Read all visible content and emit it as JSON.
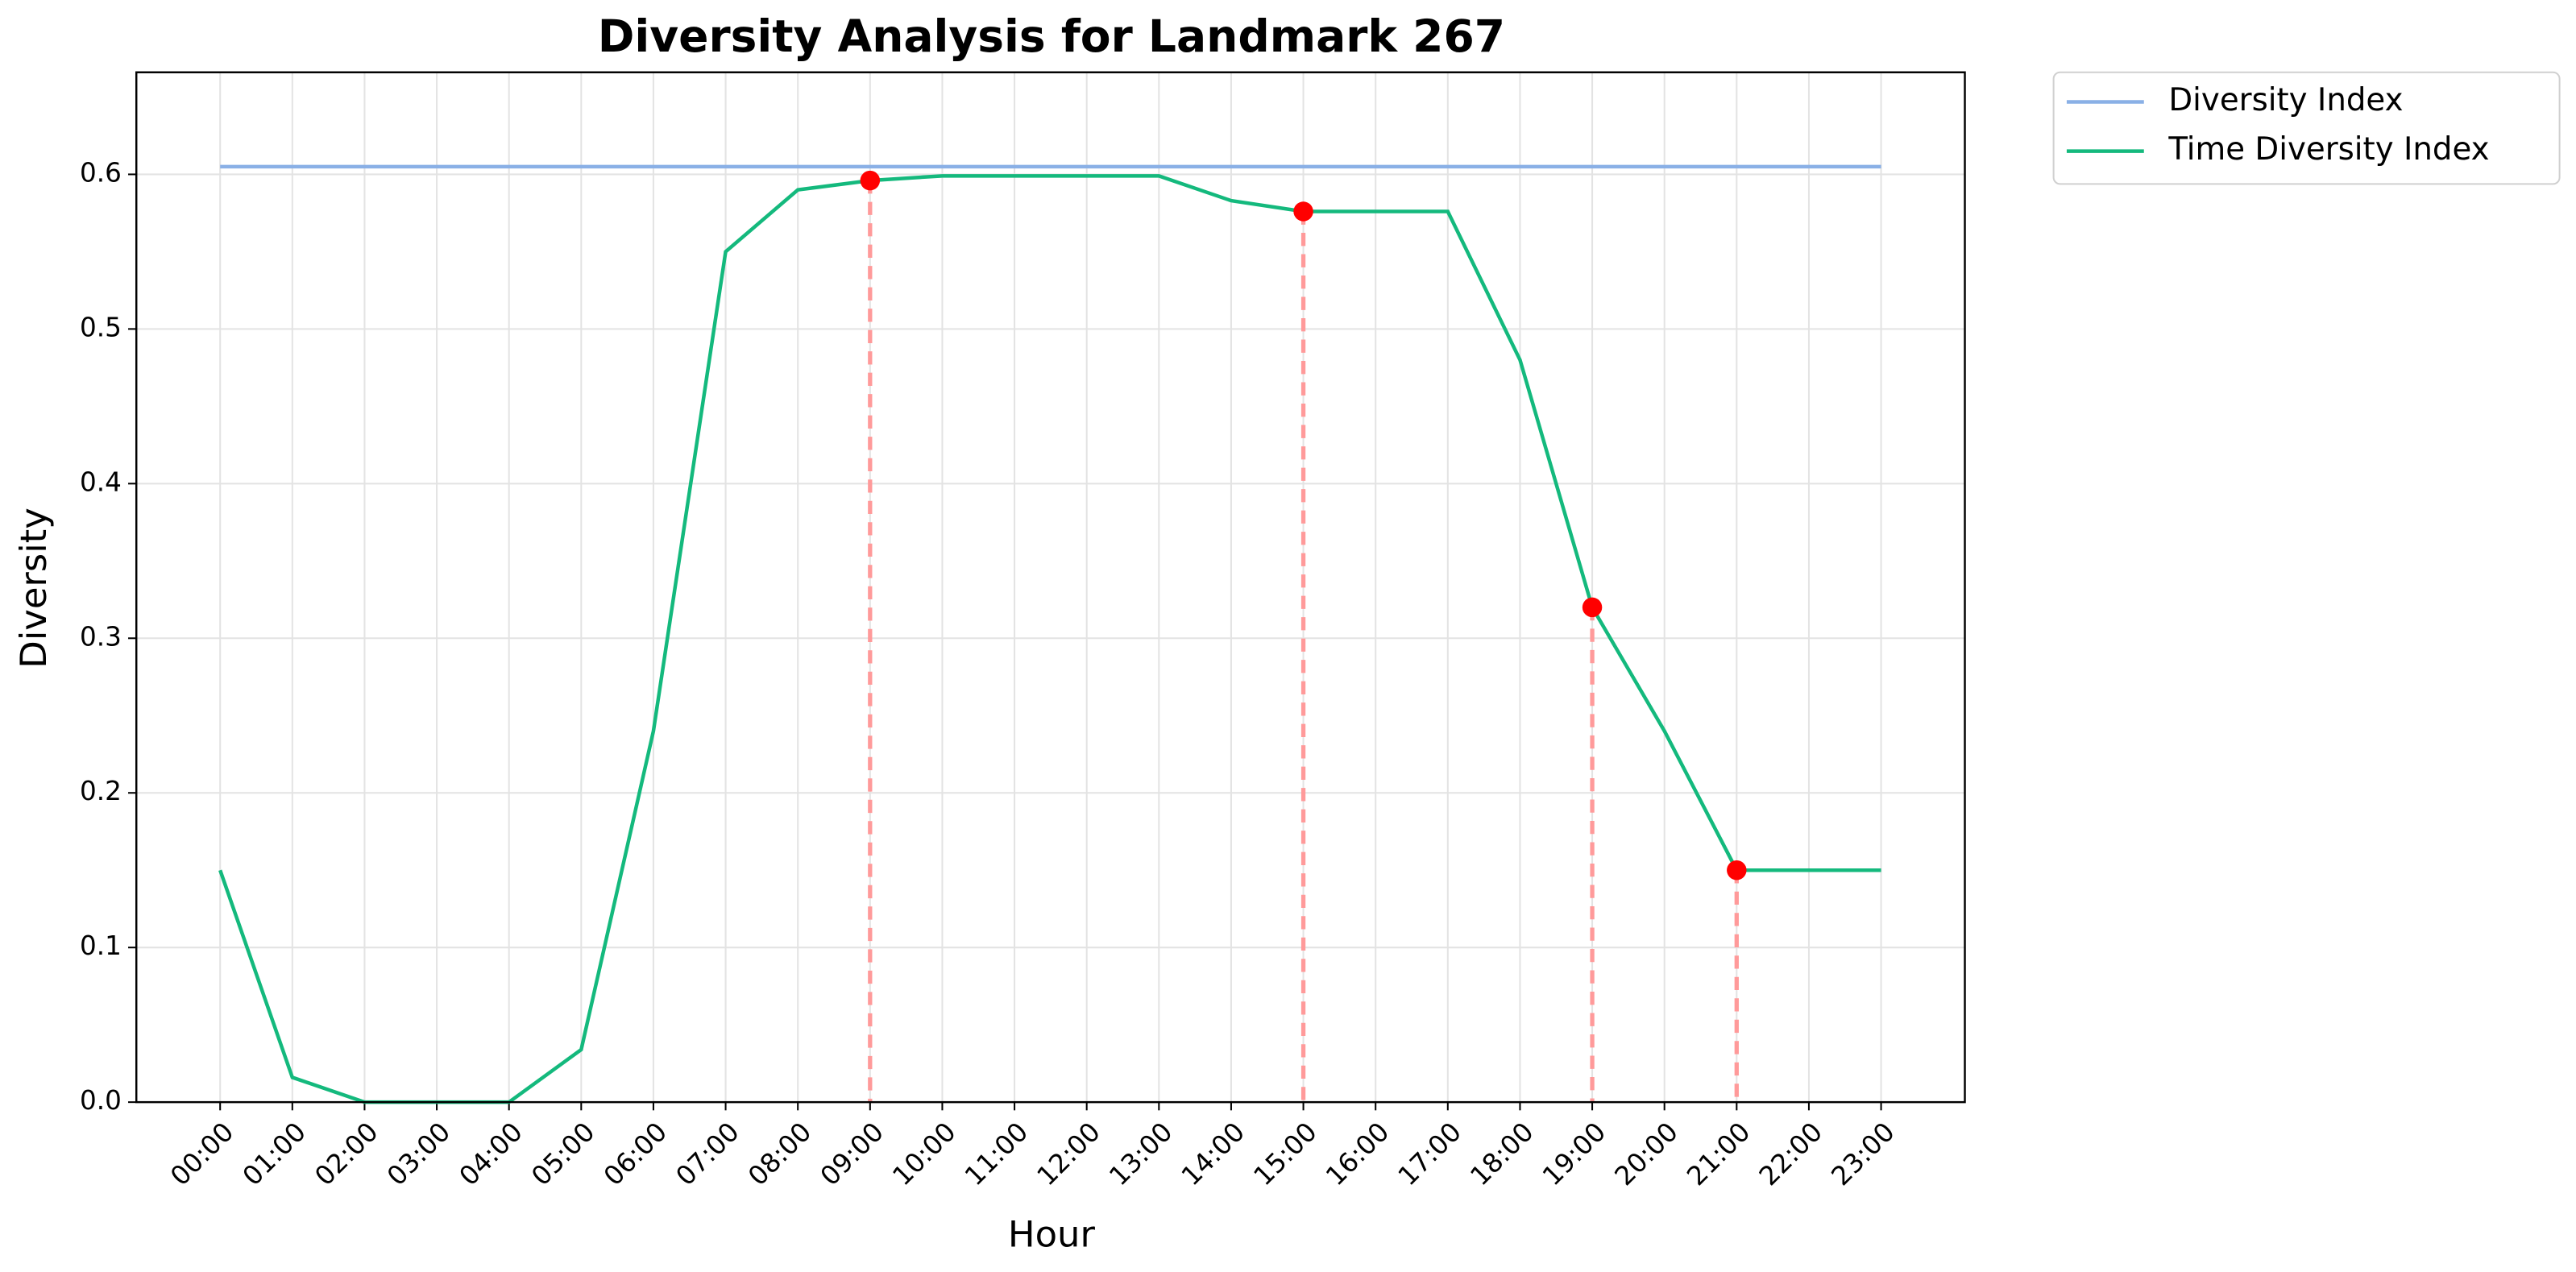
{
  "chart_data": {
    "type": "line",
    "title": "Diversity Analysis for Landmark 267",
    "x_label": "Hour",
    "y_label": "Diversity",
    "categories": [
      "00:00",
      "01:00",
      "02:00",
      "03:00",
      "04:00",
      "05:00",
      "06:00",
      "07:00",
      "08:00",
      "09:00",
      "10:00",
      "11:00",
      "12:00",
      "13:00",
      "14:00",
      "15:00",
      "16:00",
      "17:00",
      "18:00",
      "19:00",
      "20:00",
      "21:00",
      "22:00",
      "23:00"
    ],
    "series": [
      {
        "name": "Diversity Index",
        "color": "#8ab0e6",
        "values": [
          0.605,
          0.605,
          0.605,
          0.605,
          0.605,
          0.605,
          0.605,
          0.605,
          0.605,
          0.605,
          0.605,
          0.605,
          0.605,
          0.605,
          0.605,
          0.605,
          0.605,
          0.605,
          0.605,
          0.605,
          0.605,
          0.605,
          0.605,
          0.605
        ]
      },
      {
        "name": "Time Diversity Index",
        "color": "#14b97d",
        "values": [
          0.15,
          0.016,
          0.0,
          0.0,
          0.0,
          0.034,
          0.24,
          0.55,
          0.59,
          0.596,
          0.599,
          0.599,
          0.599,
          0.599,
          0.583,
          0.576,
          0.576,
          0.576,
          0.48,
          0.32,
          0.24,
          0.15,
          0.15,
          0.15
        ]
      }
    ],
    "highlight": {
      "series": 1,
      "indices": [
        9,
        15,
        19,
        21
      ],
      "color": "#ff0000",
      "line_color": "#ff9a9a"
    },
    "ylim": [
      0,
      0.666
    ],
    "yticks": [
      {
        "value": 0,
        "label": "0.0"
      },
      {
        "value": 0.1,
        "label": "0.1"
      },
      {
        "value": 0.2,
        "label": "0.2"
      },
      {
        "value": 0.3,
        "label": "0.3"
      },
      {
        "value": 0.4,
        "label": "0.4"
      },
      {
        "value": 0.5,
        "label": "0.5"
      },
      {
        "value": 0.6,
        "label": "0.6"
      }
    ],
    "grid": true,
    "legend": "outside-upper-right"
  }
}
